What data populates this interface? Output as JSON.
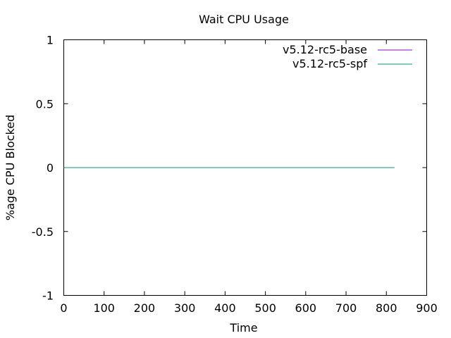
{
  "chart_data": {
    "type": "line",
    "title": "Wait CPU Usage",
    "xlabel": "Time",
    "ylabel": "%age CPU Blocked",
    "xlim": [
      0,
      900
    ],
    "ylim": [
      -1,
      1
    ],
    "xticks": [
      0,
      100,
      200,
      300,
      400,
      500,
      600,
      700,
      800,
      900
    ],
    "yticks": [
      -1,
      -0.5,
      0,
      0.5,
      1
    ],
    "xtick_labels": [
      "0",
      "100",
      "200",
      "300",
      "400",
      "500",
      "600",
      "700",
      "800",
      "900"
    ],
    "ytick_labels": [
      "-1",
      "-0.5",
      "0",
      "0.5",
      "1"
    ],
    "grid": false,
    "legend_position": "top-right",
    "series": [
      {
        "name": "v5.12-rc5-base",
        "color": "#9400d3",
        "x": [
          0,
          820
        ],
        "y": [
          0,
          0
        ]
      },
      {
        "name": "v5.12-rc5-spf",
        "color": "#009e73",
        "x": [
          0,
          820
        ],
        "y": [
          0,
          0
        ]
      }
    ]
  }
}
